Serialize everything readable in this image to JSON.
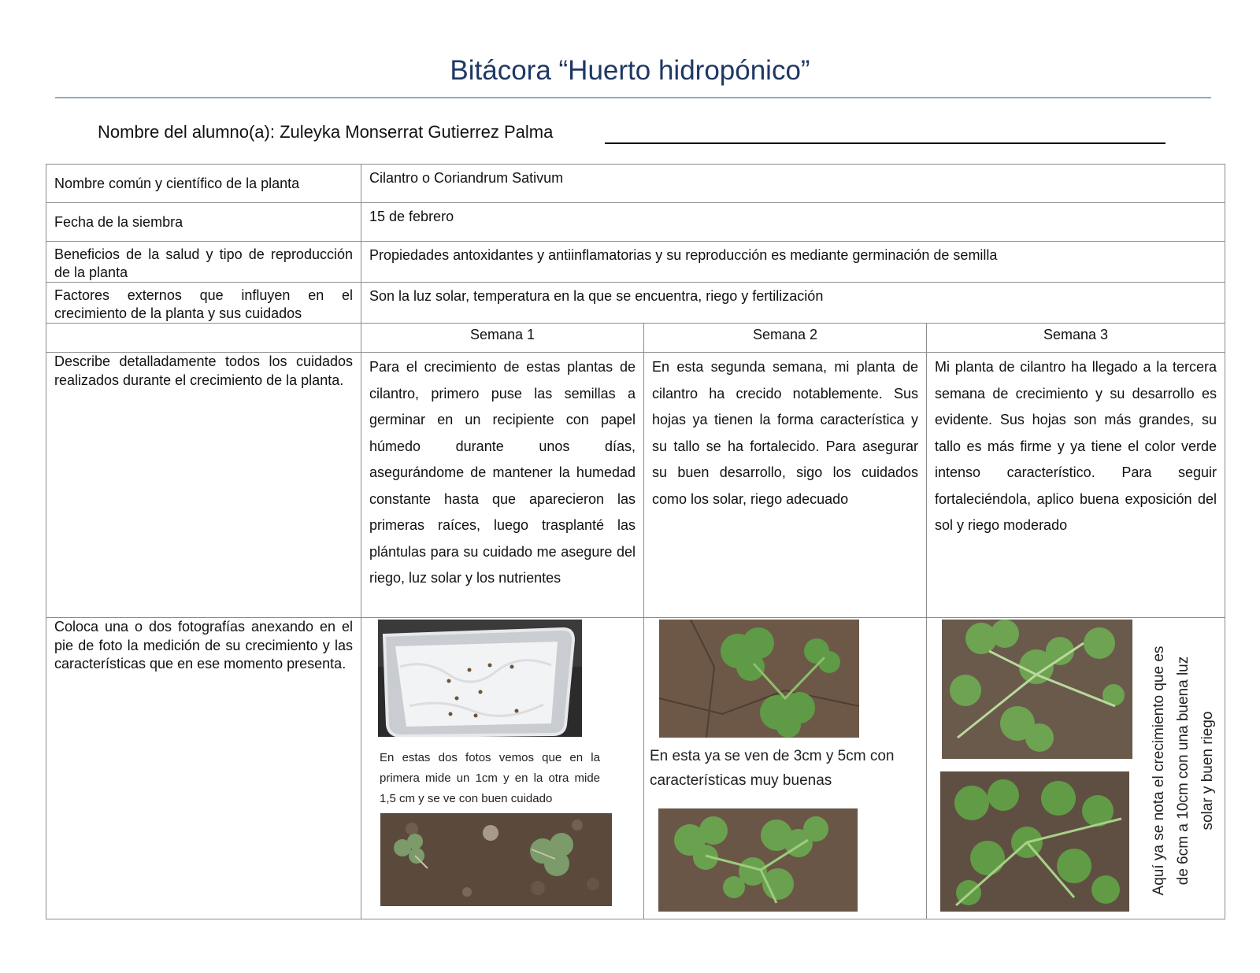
{
  "title": "Bitácora “Huerto hidropónico”",
  "student": {
    "label": "Nombre del alumno(a): Zuleyka Monserrat Gutierrez Palma"
  },
  "rows": {
    "plant_name": {
      "label": "Nombre común y científico de la planta",
      "value": "Cilantro o Coriandrum Sativum"
    },
    "sowing_date": {
      "label": "Fecha de la siembra",
      "value": "15 de febrero"
    },
    "benefits": {
      "label": "Beneficios de la salud y tipo de reproducción de la planta",
      "value": "Propiedades antoxidantes y antiinflamatorias y su reproducción es mediante germinación de semilla"
    },
    "factors": {
      "label": "Factores externos que influyen en el crecimiento de la planta y sus cuidados",
      "value": "Son la luz solar, temperatura en la que se encuentra, riego y fertilización"
    }
  },
  "weeks": [
    "Semana 1",
    "Semana 2",
    "Semana 3"
  ],
  "care": {
    "label": "Describe detalladamente todos los cuidados realizados durante el crecimiento de la planta.",
    "week1": "Para el crecimiento de estas plantas de cilantro, primero puse las semillas a germinar en un recipiente con papel húmedo durante unos días, asegurándome de mantener la humedad constante hasta que aparecieron las primeras raíces, luego trasplanté las plántulas para su cuidado me asegure del riego, luz solar y los nutrientes",
    "week2": "En esta segunda semana, mi planta de cilantro ha crecido notablemente. Sus hojas ya tienen la forma característica y su tallo se ha fortalecido. Para asegurar su buen desarrollo, sigo los cuidados como los solar, riego adecuado",
    "week3": "Mi planta de cilantro ha llegado a la tercera semana de crecimiento y su desarrollo es evidente. Sus hojas son más grandes, su tallo es más firme y ya tiene el color verde intenso característico. Para seguir fortaleciéndola, aplico buena exposición del sol y riego moderado"
  },
  "photos": {
    "label": "Coloca una o dos fotografías anexando en el pie de foto la medición de su crecimiento y las características que en ese momento presenta.",
    "week1_caption": "En estas dos fotos vemos que en la primera mide un 1cm y en la otra mide 1,5 cm y se ve con buen cuidado",
    "week2_caption": "En esta ya se ven de 3cm y 5cm con características muy buenas",
    "week3_caption": "Aquí ya se nota el crecimiento que es de 6cm a 10cm con una buena luz solar y buen riego"
  }
}
